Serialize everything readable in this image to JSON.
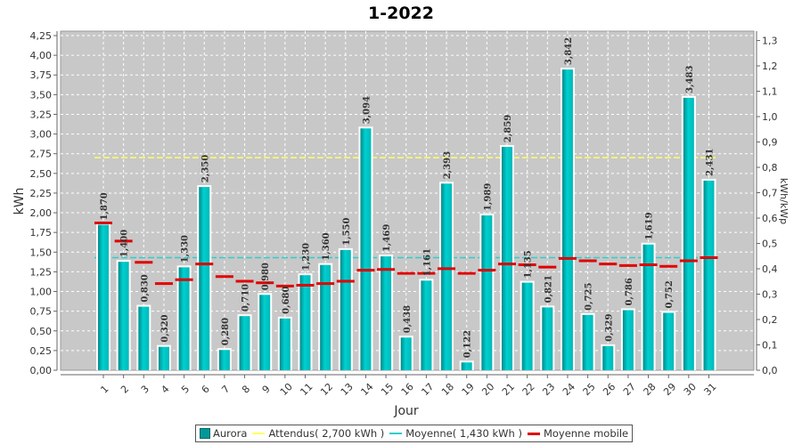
{
  "chart_data": {
    "type": "bar",
    "title": "1-2022",
    "xlabel": "Jour",
    "ylabel": "kWh",
    "ylabel_right": "kWh/kWp",
    "ylim": [
      0,
      4.25
    ],
    "ylim_right": [
      0,
      1.35
    ],
    "y_ticks": [
      "0,00",
      "0,25",
      "0,50",
      "0,75",
      "1,00",
      "1,25",
      "1,50",
      "1,75",
      "2,00",
      "2,25",
      "2,50",
      "2,75",
      "3,00",
      "3,25",
      "3,50",
      "3,75",
      "4,00",
      "4,25"
    ],
    "y_ticks_right": [
      "0,0",
      "0,1",
      "0,2",
      "0,3",
      "0,4",
      "0,5",
      "0,6",
      "0,7",
      "0,8",
      "0,9",
      "1,0",
      "1,1",
      "1,2",
      "1,3"
    ],
    "categories": [
      "1",
      "2",
      "3",
      "4",
      "5",
      "6",
      "7",
      "8",
      "9",
      "10",
      "11",
      "12",
      "13",
      "14",
      "15",
      "16",
      "17",
      "18",
      "19",
      "20",
      "21",
      "22",
      "23",
      "24",
      "25",
      "26",
      "27",
      "28",
      "29",
      "30",
      "31"
    ],
    "series": [
      {
        "name": "Aurora",
        "kind": "bar",
        "color": "#00c0c0",
        "values": [
          1.87,
          1.4,
          0.83,
          0.32,
          1.33,
          2.35,
          0.28,
          0.71,
          0.98,
          0.68,
          1.23,
          1.36,
          1.55,
          3.094,
          1.469,
          0.438,
          1.161,
          2.393,
          0.122,
          1.989,
          2.859,
          1.135,
          0.821,
          3.842,
          0.725,
          0.329,
          0.786,
          1.619,
          0.752,
          3.483,
          2.431
        ],
        "labels": [
          "1,870",
          "1,400",
          "0,830",
          "0,320",
          "1,330",
          "2,350",
          "0,280",
          "0,710",
          "0,980",
          "0,680",
          "1,230",
          "1,360",
          "1,550",
          "3,094",
          "1,469",
          "0,438",
          "1,161",
          "2,393",
          "0,122",
          "1,989",
          "2,859",
          "1,135",
          "0,821",
          "3,842",
          "0,725",
          "0,329",
          "0,786",
          "1,619",
          "0,752",
          "3,483",
          "2,431"
        ]
      },
      {
        "name": "Attendus( 2,700 kWh )",
        "kind": "hline",
        "color": "#ffff66",
        "value": 2.7
      },
      {
        "name": "Moyenne( 1,430 kWh )",
        "kind": "hline",
        "color": "#33cccc",
        "value": 1.43
      },
      {
        "name": "Moyenne mobile",
        "kind": "step",
        "color": "#e00000",
        "values": [
          1.87,
          1.64,
          1.37,
          1.1,
          1.15,
          1.35,
          1.19,
          1.13,
          1.11,
          1.07,
          1.08,
          1.1,
          1.13,
          1.27,
          1.28,
          1.23,
          1.23,
          1.29,
          1.23,
          1.27,
          1.35,
          1.34,
          1.31,
          1.42,
          1.39,
          1.35,
          1.33,
          1.34,
          1.32,
          1.39,
          1.43
        ]
      }
    ],
    "grid": true,
    "legend_position": "bottom"
  }
}
